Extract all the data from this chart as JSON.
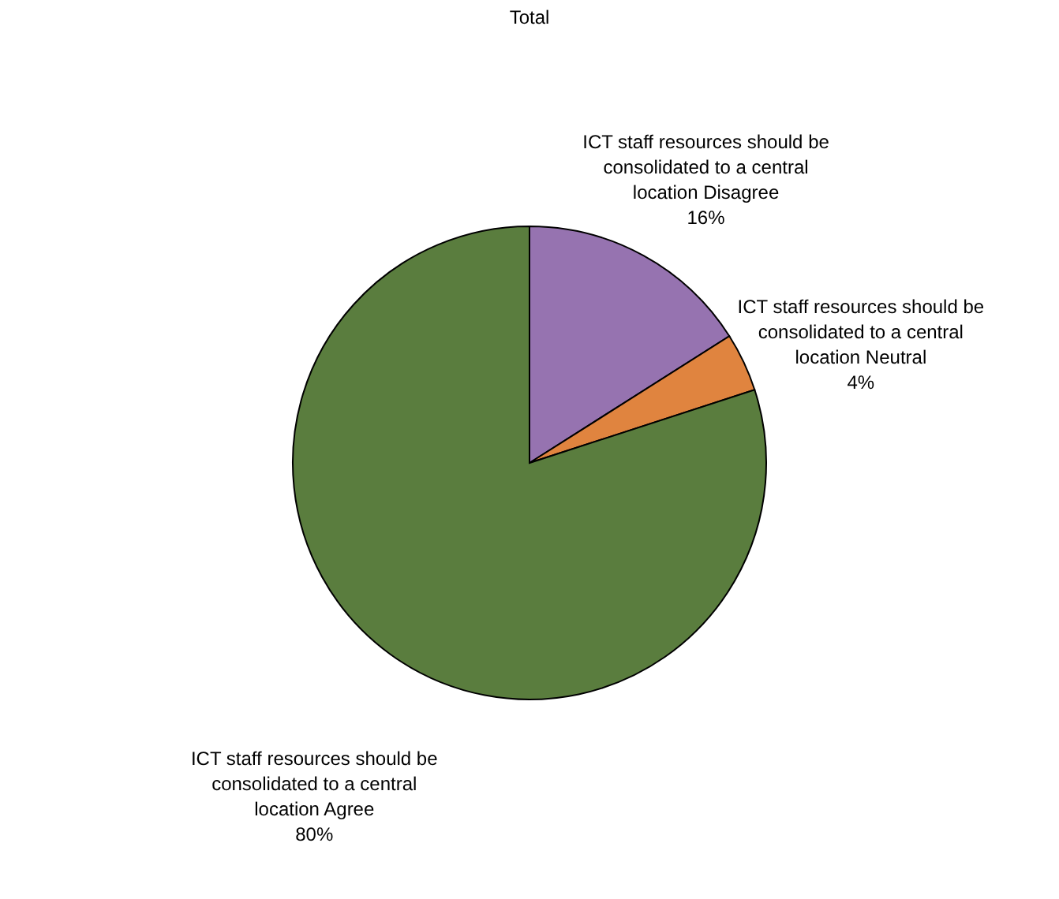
{
  "chart_data": {
    "type": "pie",
    "title": "Total",
    "categories": [
      "ICT staff resources should be consolidated to a central location Disagree",
      "ICT staff resources should be consolidated to a central location Neutral",
      "ICT staff resources should be consolidated to a central location Agree"
    ],
    "values": [
      16,
      4,
      80
    ],
    "colors": [
      "#9673b0",
      "#e0843f",
      "#5a7d3e"
    ],
    "value_labels": [
      "16%",
      "4%",
      "80%"
    ]
  }
}
